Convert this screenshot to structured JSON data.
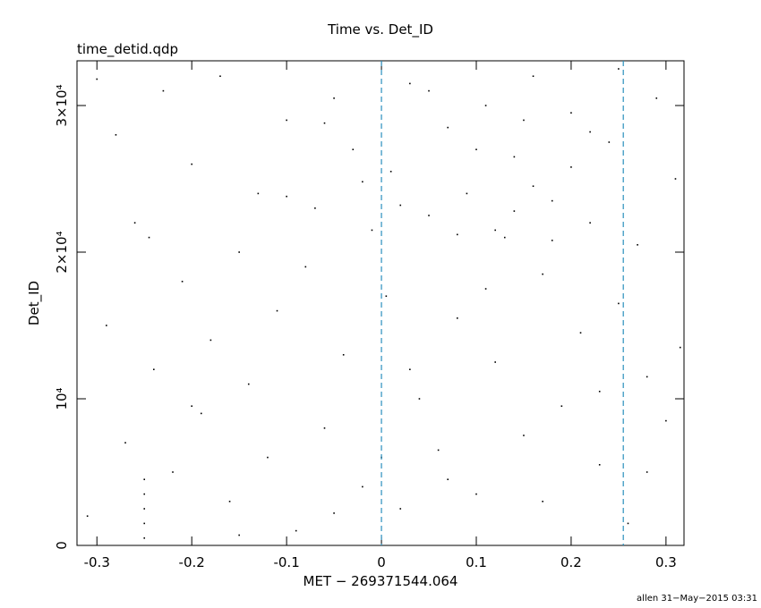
{
  "chart_data": {
    "type": "scatter",
    "title": "Time vs. Det_ID",
    "subtitle": "time_detid.qdp",
    "xlabel": "MET − 269371544.064",
    "ylabel": "Det_ID",
    "footer": "allen 31−May−2015 03:31",
    "xlim": [
      -0.321,
      0.319
    ],
    "ylim": [
      0,
      33050
    ],
    "xticks": [
      -0.3,
      -0.2,
      -0.1,
      0,
      0.1,
      0.2,
      0.3
    ],
    "yticks": [
      0,
      {
        "value": 10000,
        "label": "10⁴"
      },
      {
        "value": 20000,
        "label": "2×10⁴"
      },
      {
        "value": 30000,
        "label": "3×10⁴"
      }
    ],
    "vlines": [
      0,
      0.255
    ],
    "vline_color": "#2a8fbd",
    "color": "#000000",
    "x": [
      -0.31,
      -0.29,
      -0.28,
      -0.27,
      -0.26,
      -0.25,
      -0.25,
      -0.25,
      -0.25,
      -0.25,
      -0.245,
      -0.24,
      -0.23,
      -0.22,
      -0.21,
      -0.2,
      -0.19,
      -0.18,
      -0.17,
      -0.16,
      -0.15,
      -0.14,
      -0.13,
      -0.12,
      -0.11,
      -0.1,
      -0.09,
      -0.08,
      -0.07,
      -0.06,
      -0.05,
      -0.04,
      -0.03,
      -0.02,
      -0.01,
      0.005,
      0.01,
      0.02,
      0.03,
      0.04,
      0.05,
      0.06,
      0.07,
      0.08,
      0.09,
      0.1,
      0.11,
      0.12,
      0.13,
      0.14,
      0.15,
      0.16,
      0.17,
      0.18,
      0.19,
      0.2,
      0.21,
      0.22,
      0.23,
      0.24,
      0.25,
      0.26,
      0.27,
      0.28,
      0.29,
      0.3,
      0.31,
      0.315,
      0.12,
      0.14,
      0.16,
      0.18,
      0.2,
      0.22,
      -0.02,
      0.02,
      0.05,
      0.1,
      0.15,
      0.08,
      -0.06,
      -0.1,
      0.25,
      -0.3,
      -0.2,
      0.0,
      0.03,
      0.07,
      0.11,
      0.17,
      0.23,
      0.28,
      -0.15,
      -0.05
    ],
    "values": [
      2000,
      15000,
      28000,
      7000,
      22000,
      500,
      1500,
      2500,
      3500,
      4500,
      21000,
      12000,
      31000,
      5000,
      18000,
      26000,
      9000,
      14000,
      32000,
      3000,
      20000,
      11000,
      24000,
      6000,
      16000,
      29000,
      1000,
      19000,
      23000,
      8000,
      30500,
      13000,
      27000,
      4000,
      21500,
      17000,
      25500,
      2500,
      31500,
      10000,
      22500,
      6500,
      28500,
      15500,
      24000,
      3500,
      30000,
      12500,
      21000,
      26500,
      7500,
      32000,
      18500,
      23500,
      9500,
      29500,
      14500,
      22000,
      5500,
      27500,
      16500,
      1500,
      20500,
      11500,
      30500,
      8500,
      25000,
      13500,
      21500,
      22800,
      24500,
      20800,
      25800,
      28200,
      24800,
      23200,
      31000,
      27000,
      29000,
      21200,
      28800,
      23800,
      32500,
      31800,
      9500,
      6000,
      12000,
      4500,
      17500,
      3000,
      10500,
      5000,
      700,
      2200
    ]
  }
}
